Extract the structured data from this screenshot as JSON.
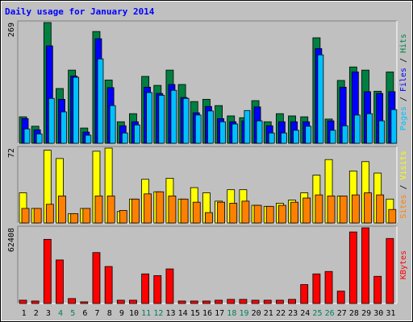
{
  "chart_data": [
    {
      "type": "bar",
      "title": "Daily usage for January 2014",
      "ylim": [
        0,
        269
      ],
      "yticks": [
        269
      ],
      "label_separator": " / ",
      "series": [
        {
          "name": "Hits",
          "color": "#008040",
          "values": [
            59,
            38,
            269,
            122,
            163,
            34,
            249,
            141,
            48,
            66,
            149,
            129,
            163,
            131,
            93,
            98,
            84,
            61,
            57,
            95,
            48,
            66,
            61,
            59,
            235,
            54,
            140,
            170,
            163,
            116,
            159
          ]
        },
        {
          "name": "Files",
          "color": "#0000ff",
          "values": [
            55,
            30,
            217,
            98,
            150,
            25,
            233,
            124,
            39,
            48,
            125,
            111,
            131,
            102,
            68,
            82,
            55,
            48,
            50,
            81,
            39,
            48,
            48,
            48,
            211,
            50,
            125,
            159,
            115,
            111,
            115
          ]
        },
        {
          "name": "Pages",
          "color": "#00c0ff",
          "values": [
            32,
            21,
            100,
            70,
            147,
            18,
            188,
            84,
            23,
            41,
            113,
            107,
            118,
            100,
            63,
            72,
            48,
            43,
            73,
            50,
            23,
            23,
            29,
            38,
            197,
            29,
            39,
            63,
            66,
            50,
            75
          ]
        }
      ]
    },
    {
      "type": "bar",
      "ylim": [
        0,
        72
      ],
      "yticks": [
        72
      ],
      "label_separator": " / ",
      "series": [
        {
          "name": "Visits",
          "color": "#ffff00",
          "values": [
            29,
            14,
            70,
            62,
            9,
            14,
            69,
            72,
            11,
            23,
            42,
            30,
            43,
            23,
            34,
            29,
            21,
            32,
            32,
            17,
            16,
            19,
            22,
            29,
            46,
            61,
            26,
            50,
            59,
            48,
            23
          ]
        },
        {
          "name": "Sites",
          "color": "#ff8000",
          "values": [
            14,
            14,
            18,
            26,
            9,
            14,
            26,
            26,
            12,
            23,
            28,
            30,
            26,
            23,
            20,
            10,
            20,
            19,
            21,
            17,
            16,
            17,
            20,
            24,
            27,
            26,
            26,
            27,
            29,
            27,
            13
          ]
        }
      ]
    },
    {
      "type": "bar",
      "ylim": [
        0,
        62408
      ],
      "yticks": [
        62408
      ],
      "categories": [
        "1",
        "2",
        "3",
        "4",
        "5",
        "6",
        "7",
        "8",
        "9",
        "10",
        "11",
        "12",
        "13",
        "14",
        "15",
        "16",
        "17",
        "18",
        "19",
        "20",
        "21",
        "22",
        "23",
        "24",
        "25",
        "26",
        "27",
        "28",
        "29",
        "30",
        "31"
      ],
      "category_colors": [
        "#000",
        "#000",
        "#000",
        "#00805c",
        "#00805c",
        "#000",
        "#000",
        "#000",
        "#000",
        "#000",
        "#00805c",
        "#00805c",
        "#000",
        "#000",
        "#000",
        "#000",
        "#000",
        "#00805c",
        "#00805c",
        "#000",
        "#000",
        "#000",
        "#000",
        "#000",
        "#00805c",
        "#00805c",
        "#000",
        "#000",
        "#000",
        "#000",
        "#000"
      ],
      "series": [
        {
          "name": "KBytes",
          "color": "#ff0000",
          "values": [
            2712,
            2035,
            52900,
            35900,
            4068,
            1356,
            42000,
            30500,
            2712,
            2712,
            24400,
            23000,
            28500,
            2035,
            2035,
            2035,
            2712,
            3390,
            3390,
            2712,
            2712,
            2712,
            3390,
            15600,
            24400,
            26400,
            10200,
            59000,
            62408,
            22400,
            53600
          ]
        }
      ]
    }
  ]
}
